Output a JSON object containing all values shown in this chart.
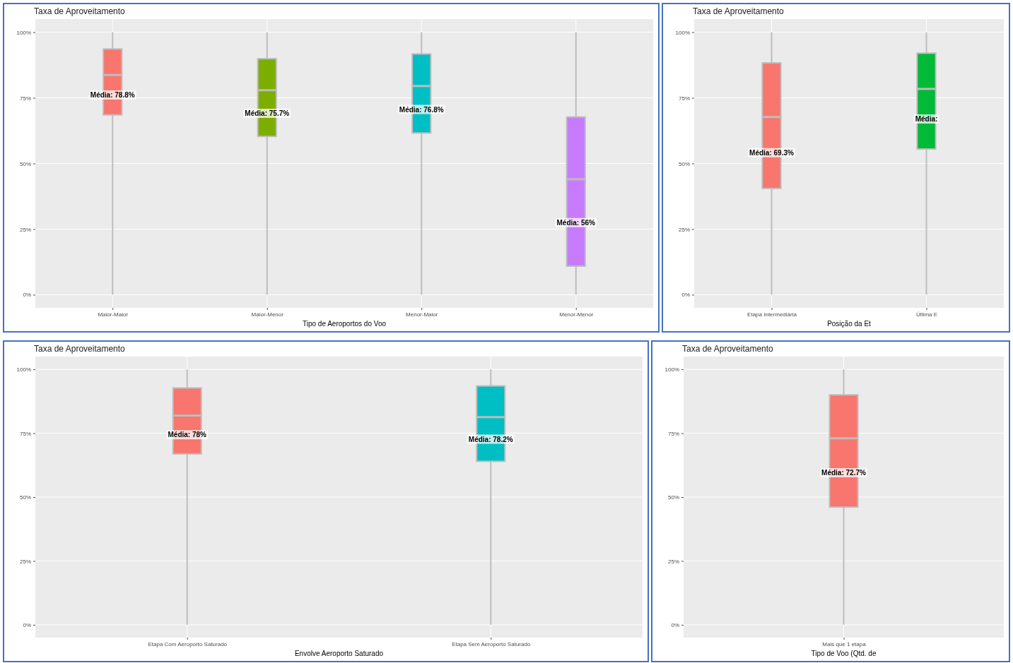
{
  "chart_data": [
    {
      "type": "box",
      "title": "Taxa de Aproveitamento",
      "xlabel": "Tipo de Aeroportos do Voo",
      "categories": [
        "Maior-Maior",
        "Maior-Menor",
        "Menor-Maior",
        "Menor-Menor"
      ],
      "colors": [
        "#f8766d",
        "#7cae00",
        "#00bfc4",
        "#c77cff"
      ],
      "ylim": [
        -5,
        105
      ],
      "yticks": [
        {
          "value": 0,
          "label": "0%"
        },
        {
          "value": 25,
          "label": "25%"
        },
        {
          "value": 50,
          "label": "50%"
        },
        {
          "value": 75,
          "label": "75%"
        },
        {
          "value": 100,
          "label": "100%"
        }
      ],
      "grid": true,
      "boxes": [
        {
          "low": 0,
          "q1": 68.5,
          "median": 83.7,
          "q3": 93.6,
          "high": 100
        },
        {
          "low": 0,
          "q1": 60.3,
          "median": 77.9,
          "q3": 89.9,
          "high": 100
        },
        {
          "low": 0,
          "q1": 61.6,
          "median": 79.5,
          "q3": 91.7,
          "high": 100
        },
        {
          "low": 0,
          "q1": 10.9,
          "median": 44,
          "q3": 67.7,
          "high": 100
        }
      ],
      "annotations": [
        "Média: 78.8%",
        "Média: 75.7%",
        "Média: 76.8%",
        "Média: 56%"
      ]
    },
    {
      "type": "box",
      "title": "Taxa de Aproveitamento",
      "xlabel": "Posição da Et",
      "categories": [
        "Etapa Intermediária",
        "Última E"
      ],
      "colors": [
        "#f8766d",
        "#00ba38"
      ],
      "ylim": [
        -5,
        105
      ],
      "yticks": [
        {
          "value": 0,
          "label": "0%"
        },
        {
          "value": 25,
          "label": "25%"
        },
        {
          "value": 50,
          "label": "50%"
        },
        {
          "value": 75,
          "label": "75%"
        },
        {
          "value": 100,
          "label": "100%"
        }
      ],
      "grid": true,
      "boxes": [
        {
          "low": 0,
          "q1": 40.5,
          "median": 67.7,
          "q3": 88.3,
          "high": 100
        },
        {
          "low": 0,
          "q1": 55.5,
          "median": 78.4,
          "q3": 92,
          "high": 100
        }
      ],
      "annotations": [
        "Média: 69.3%",
        "Média:"
      ]
    },
    {
      "type": "box",
      "title": "Taxa de Aproveitamento",
      "xlabel": "Envolve Aeroporto Saturado",
      "categories": [
        "Etapa Com Aeroporto Saturado",
        "Etapa Sem Aeroporto Saturado"
      ],
      "colors": [
        "#f8766d",
        "#00bfc4"
      ],
      "ylim": [
        -5,
        105
      ],
      "yticks": [
        {
          "value": 0,
          "label": "0%"
        },
        {
          "value": 25,
          "label": "25%"
        },
        {
          "value": 50,
          "label": "50%"
        },
        {
          "value": 75,
          "label": "75%"
        },
        {
          "value": 100,
          "label": "100%"
        }
      ],
      "grid": true,
      "boxes": [
        {
          "low": 0,
          "q1": 66.9,
          "median": 81.9,
          "q3": 92.7,
          "high": 100
        },
        {
          "low": 0,
          "q1": 64,
          "median": 81.3,
          "q3": 93.5,
          "high": 100
        }
      ],
      "annotations": [
        "Média: 78%",
        "Média: 78.2%"
      ]
    },
    {
      "type": "box",
      "title": "Taxa de Aproveitamento",
      "xlabel": "Tipo de Voo (Qtd. de",
      "categories": [
        "Mais que 1 etapa"
      ],
      "colors": [
        "#f8766d"
      ],
      "ylim": [
        -5,
        105
      ],
      "yticks": [
        {
          "value": 0,
          "label": "0%"
        },
        {
          "value": 25,
          "label": "25%"
        },
        {
          "value": 50,
          "label": "50%"
        },
        {
          "value": 75,
          "label": "75%"
        },
        {
          "value": 100,
          "label": "100%"
        }
      ],
      "grid": true,
      "boxes": [
        {
          "low": 0,
          "q1": 46.1,
          "median": 73,
          "q3": 90,
          "high": 100
        }
      ],
      "annotations": [
        "Média: 72.7%"
      ]
    }
  ]
}
